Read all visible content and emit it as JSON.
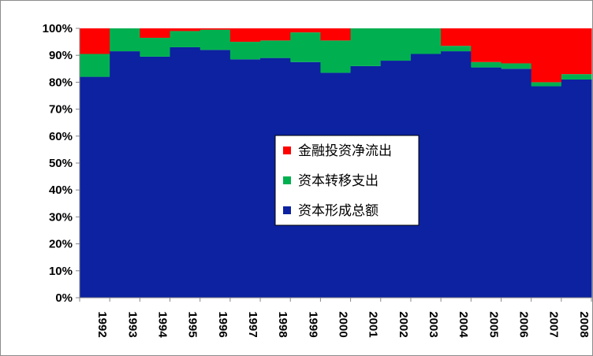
{
  "chart_data": {
    "type": "bar",
    "stacking": "percent",
    "title": "",
    "xlabel": "",
    "ylabel": "",
    "ylim": [
      0,
      100
    ],
    "yticks": [
      "0%",
      "10%",
      "20%",
      "30%",
      "40%",
      "50%",
      "60%",
      "70%",
      "80%",
      "90%",
      "100%"
    ],
    "grid": false,
    "legend_position": "center",
    "categories": [
      "1992",
      "1993",
      "1994",
      "1995",
      "1996",
      "1997",
      "1998",
      "1999",
      "2000",
      "2001",
      "2002",
      "2003",
      "2004",
      "2005",
      "2006",
      "2007",
      "2008"
    ],
    "series": [
      {
        "name": "资本形成总额",
        "color": "#0c22a0",
        "values": [
          82,
          91.5,
          89.5,
          93,
          92,
          88.5,
          89,
          87.5,
          83.5,
          86,
          88,
          90.5,
          91.5,
          85.5,
          85,
          78.5,
          81
        ]
      },
      {
        "name": "资本转移支出",
        "color": "#00b050",
        "values": [
          8.5,
          8.5,
          7,
          6,
          7.5,
          6.5,
          6.5,
          11,
          12,
          14,
          12,
          9.5,
          2,
          2,
          2,
          1.5,
          2
        ]
      },
      {
        "name": "金融投资净流出",
        "color": "#ff0000",
        "values": [
          9.5,
          0,
          3.5,
          1,
          0.5,
          5,
          4.5,
          1.5,
          4.5,
          0,
          0,
          0,
          6.5,
          12.5,
          13,
          20,
          17
        ]
      }
    ],
    "legend_order": [
      2,
      1,
      0
    ]
  }
}
